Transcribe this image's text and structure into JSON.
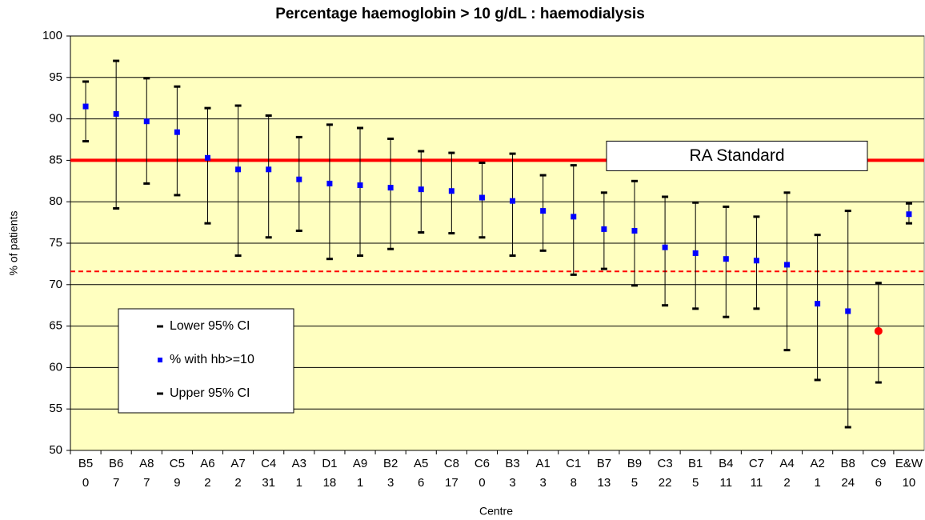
{
  "chart_data": {
    "type": "errorbar",
    "title": "Percentage haemoglobin > 10 g/dL : haemodialysis",
    "y_label": "% of patients",
    "x_label": "Centre",
    "categories": [
      "B5",
      "B6",
      "A8",
      "C5",
      "A6",
      "A7",
      "C4",
      "A3",
      "D1",
      "A9",
      "B2",
      "A5",
      "C8",
      "C6",
      "B3",
      "A1",
      "C1",
      "B7",
      "B9",
      "C3",
      "B1",
      "B4",
      "C7",
      "A4",
      "A2",
      "B8",
      "C9",
      "E&W"
    ],
    "category_sublabels": [
      "0",
      "7",
      "7",
      "9",
      "2",
      "2",
      "31",
      "1",
      "18",
      "1",
      "3",
      "6",
      "17",
      "0",
      "3",
      "3",
      "8",
      "13",
      "5",
      "22",
      "5",
      "11",
      "11",
      "2",
      "1",
      "24",
      "6",
      "10"
    ],
    "series": [
      {
        "name": "Lower 95% CI",
        "color": "#000000",
        "values": [
          87.3,
          79.2,
          82.2,
          80.8,
          77.4,
          73.5,
          75.7,
          76.5,
          73.1,
          73.5,
          74.3,
          76.3,
          76.2,
          75.7,
          73.5,
          74.1,
          71.2,
          71.9,
          69.9,
          67.5,
          67.1,
          66.1,
          67.1,
          62.1,
          58.5,
          52.8,
          58.2,
          77.4
        ]
      },
      {
        "name": "% with hb>=10",
        "color": "#0000ff",
        "point_colors": [
          "#0000ff",
          "#0000ff",
          "#0000ff",
          "#0000ff",
          "#0000ff",
          "#0000ff",
          "#0000ff",
          "#0000ff",
          "#0000ff",
          "#0000ff",
          "#0000ff",
          "#0000ff",
          "#0000ff",
          "#0000ff",
          "#0000ff",
          "#0000ff",
          "#0000ff",
          "#0000ff",
          "#0000ff",
          "#0000ff",
          "#0000ff",
          "#0000ff",
          "#0000ff",
          "#0000ff",
          "#0000ff",
          "#0000ff",
          "#ff0000",
          "#0000ff"
        ],
        "values": [
          91.5,
          90.6,
          89.7,
          88.4,
          85.3,
          83.9,
          83.9,
          82.7,
          82.2,
          82.0,
          81.7,
          81.5,
          81.3,
          80.5,
          80.1,
          78.9,
          78.2,
          76.7,
          76.5,
          74.5,
          73.8,
          73.1,
          72.9,
          72.4,
          67.7,
          66.8,
          64.4,
          78.5
        ]
      },
      {
        "name": "Upper 95% CI",
        "color": "#000000",
        "values": [
          94.5,
          97.0,
          94.9,
          93.9,
          91.3,
          91.6,
          90.4,
          87.8,
          89.3,
          88.9,
          87.6,
          86.1,
          85.9,
          84.7,
          85.8,
          83.2,
          84.4,
          81.1,
          82.5,
          80.6,
          79.9,
          79.4,
          78.2,
          81.1,
          76.0,
          78.9,
          70.2,
          79.8
        ]
      }
    ],
    "reference_lines": [
      {
        "value": 85,
        "label": "RA Standard",
        "style": "solid",
        "color": "#ff0000"
      },
      {
        "value": 71.6,
        "style": "dashed",
        "color": "#ff0000"
      }
    ],
    "ylim": [
      50,
      100
    ],
    "yticks": [
      50,
      55,
      60,
      65,
      70,
      75,
      80,
      85,
      90,
      95,
      100
    ],
    "grid": true,
    "plot_background": "#ffffc0",
    "legend": "lower-left"
  }
}
